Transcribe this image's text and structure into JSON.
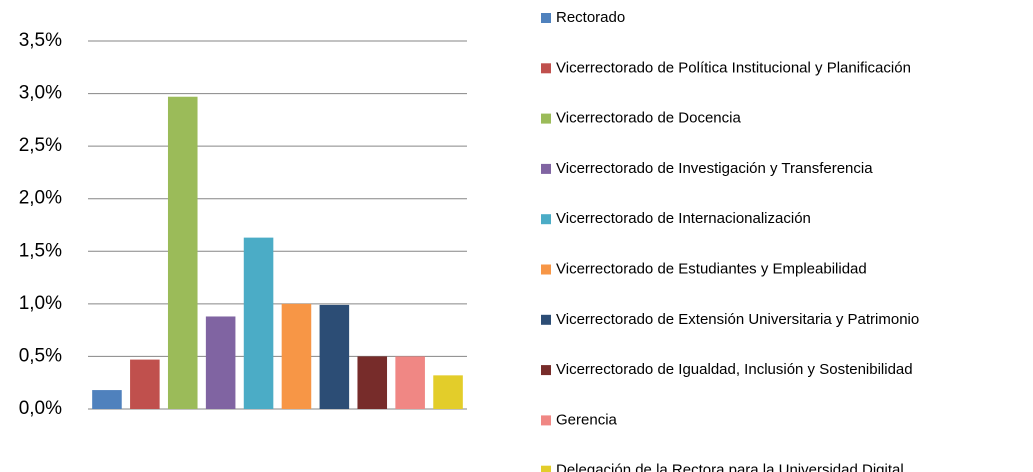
{
  "chart_data": {
    "type": "bar",
    "series": [
      {
        "name": "Rectorado",
        "color": "#4f81bd",
        "values": [
          0.18
        ]
      },
      {
        "name": "Vicerrectorado de Política Institucional y Planificación",
        "color": "#c0504d",
        "values": [
          0.47
        ]
      },
      {
        "name": "Vicerrectorado de Docencia",
        "color": "#9bbb59",
        "values": [
          2.97
        ]
      },
      {
        "name": "Vicerrectorado de Investigación y Transferencia",
        "color": "#8064a2",
        "values": [
          0.88
        ]
      },
      {
        "name": "Vicerrectorado de Internacionalización",
        "color": "#4bacc6",
        "values": [
          1.63
        ]
      },
      {
        "name": "Vicerrectorado de Estudiantes y Empleabilidad",
        "color": "#f79646",
        "values": [
          1.0
        ]
      },
      {
        "name": "Vicerrectorado de Extensión Universitaria y Patrimonio",
        "color": "#2c4d75",
        "values": [
          0.99
        ]
      },
      {
        "name": "Vicerrectorado de Igualdad, Inclusión y Sostenibilidad",
        "color": "#772c2a",
        "values": [
          0.5
        ]
      },
      {
        "name": "Gerencia",
        "color": "#f08784",
        "values": [
          0.5
        ]
      },
      {
        "name": "Delegación de la Rectora para la Universidad Digital",
        "color": "#e3cd2a",
        "values": [
          0.32
        ]
      }
    ],
    "ylim": [
      0,
      3.5
    ],
    "yticks": [
      {
        "value": 0,
        "label": "0,0%"
      },
      {
        "value": 0.5,
        "label": "0,5%"
      },
      {
        "value": 1,
        "label": "1,0%"
      },
      {
        "value": 1.5,
        "label": "1,5%"
      },
      {
        "value": 2,
        "label": "2,0%"
      },
      {
        "value": 2.5,
        "label": "2,5%"
      },
      {
        "value": 3,
        "label": "3,0%"
      },
      {
        "value": 3.5,
        "label": "3,5%"
      }
    ],
    "grid": true
  }
}
